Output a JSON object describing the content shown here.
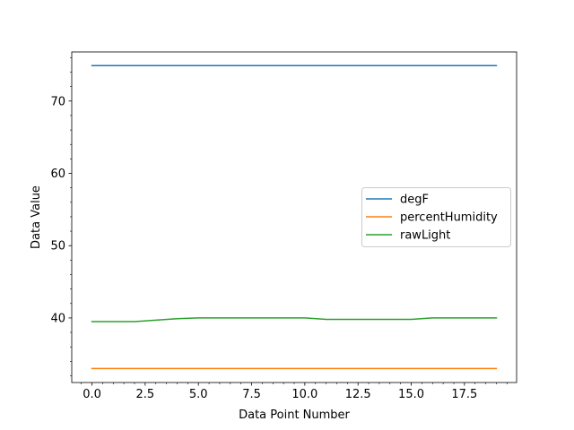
{
  "chart_data": {
    "type": "line",
    "title": "",
    "xlabel": "Data Point Number",
    "ylabel": "Data Value",
    "xlim": [
      -0.95,
      19.95
    ],
    "ylim": [
      31.07,
      76.79
    ],
    "x": [
      0,
      1,
      2,
      3,
      4,
      5,
      6,
      7,
      8,
      9,
      10,
      11,
      12,
      13,
      14,
      15,
      16,
      17,
      18,
      19
    ],
    "x_major_ticks": [
      0,
      2.5,
      5,
      7.5,
      10,
      12.5,
      15,
      17.5
    ],
    "x_tick_labels": [
      "0.0",
      "2.5",
      "5.0",
      "7.5",
      "10.0",
      "12.5",
      "15.0",
      "17.5"
    ],
    "y_major_ticks": [
      40,
      50,
      60,
      70
    ],
    "y_tick_labels": [
      "40",
      "50",
      "60",
      "70"
    ],
    "grid": false,
    "legend_position": "center-right",
    "series": [
      {
        "name": "degF",
        "color": "#1f77b4",
        "values": [
          74.9,
          74.9,
          74.9,
          74.9,
          74.9,
          74.9,
          74.9,
          74.9,
          74.9,
          74.9,
          74.9,
          74.9,
          74.9,
          74.9,
          74.9,
          74.9,
          74.9,
          74.9,
          74.9,
          74.9
        ]
      },
      {
        "name": "percentHumidity",
        "color": "#ff7f0e",
        "values": [
          33.0,
          33.0,
          33.0,
          33.0,
          33.0,
          33.0,
          33.0,
          33.0,
          33.0,
          33.0,
          33.0,
          33.0,
          33.0,
          33.0,
          33.0,
          33.0,
          33.0,
          33.0,
          33.0,
          33.0
        ]
      },
      {
        "name": "rawLight",
        "color": "#2ca02c",
        "values": [
          39.5,
          39.5,
          39.5,
          39.7,
          39.9,
          40.0,
          40.0,
          40.0,
          40.0,
          40.0,
          40.0,
          39.8,
          39.8,
          39.8,
          39.8,
          39.8,
          40.0,
          40.0,
          40.0,
          40.0
        ]
      }
    ]
  }
}
